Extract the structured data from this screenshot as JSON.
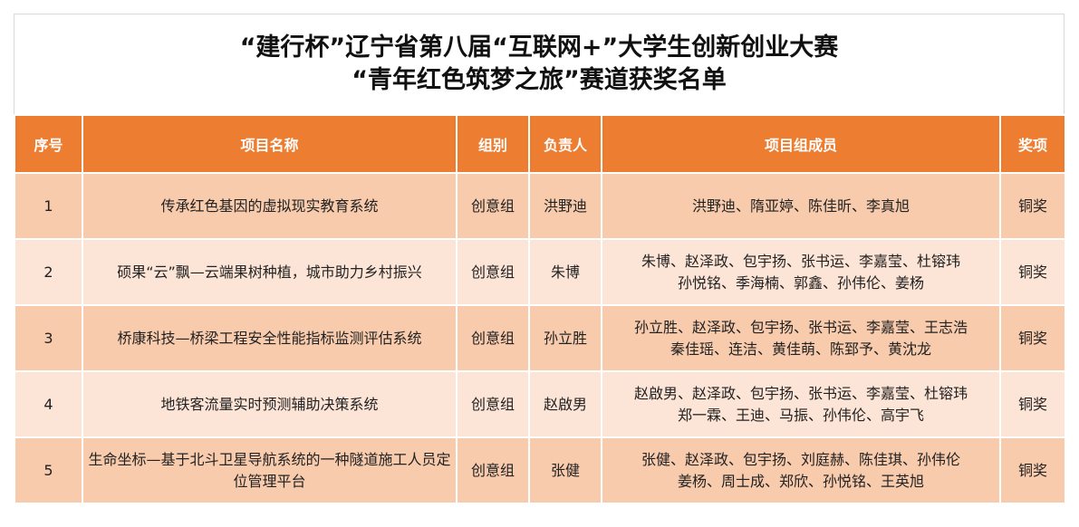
{
  "title": {
    "line1": "“建行杯”辽宁省第八届“互联网+”大学生创新创业大赛",
    "line2": "“青年红色筑梦之旅”赛道获奖名单"
  },
  "colors": {
    "header": "#ED7D31",
    "row_odd": "#F8CBAD",
    "row_even": "#FCE4D6"
  },
  "columns": [
    "序号",
    "项目名称",
    "组别",
    "负责人",
    "项目组成员",
    "奖项"
  ],
  "rows": [
    {
      "no": "1",
      "project": "传承红色基因的虚拟现实教育系统",
      "group": "创意组",
      "leader": "洪野迪",
      "members": [
        "洪野迪、隋亚婷、陈佳昕、李真旭"
      ],
      "award": "铜奖"
    },
    {
      "no": "2",
      "project": "硕果“云”飘—云端果树种植，城市助力乡村振兴",
      "group": "创意组",
      "leader": "朱博",
      "members": [
        "朱博、赵泽政、包宇扬、张书运、李嘉莹、杜镕玮",
        "孙悦铭、季海楠、郭鑫、孙伟伦、姜杨"
      ],
      "award": "铜奖"
    },
    {
      "no": "3",
      "project": "桥康科技—桥梁工程安全性能指标监测评估系统",
      "group": "创意组",
      "leader": "孙立胜",
      "members": [
        "孙立胜、赵泽政、包宇扬、张书运、李嘉莹、王志浩",
        "秦佳瑶、连洁、黄佳萌、陈郅予、黄沈龙"
      ],
      "award": "铜奖"
    },
    {
      "no": "4",
      "project": "地铁客流量实时预测辅助决策系统",
      "group": "创意组",
      "leader": "赵啟男",
      "members": [
        "赵啟男、赵泽政、包宇扬、张书运、李嘉莹、杜镕玮",
        "郑一霖、王迪、马振、孙伟伦、高宇飞"
      ],
      "award": "铜奖"
    },
    {
      "no": "5",
      "project": "生命坐标—基于北斗卫星导航系统的一种隧道施工人员定位管理平台",
      "group": "创意组",
      "leader": "张健",
      "members": [
        "张健、赵泽政、包宇扬、刘庭赫、陈佳琪、孙伟伦",
        "姜杨、周士成、郑欣、孙悦铭、王英旭"
      ],
      "award": "铜奖"
    }
  ]
}
